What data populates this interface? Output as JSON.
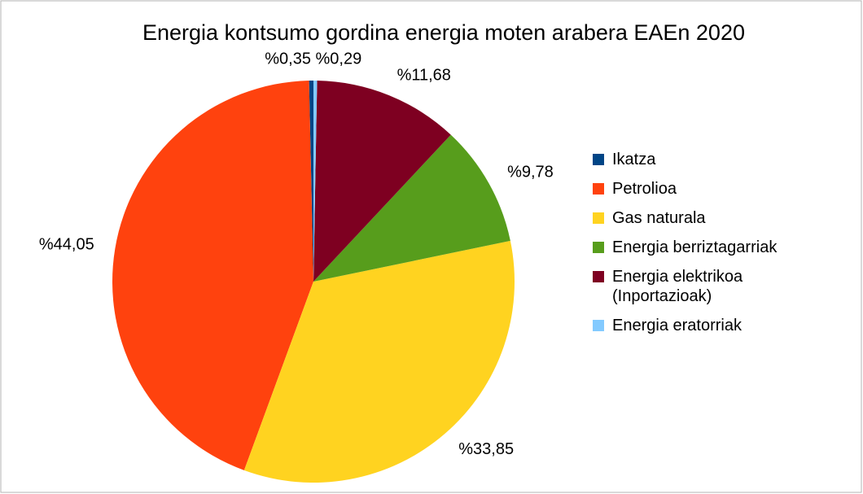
{
  "chart_data": {
    "type": "pie",
    "title": "Energia kontsumo gordina energia moten arabera EAEn 2020",
    "categories": [
      "Ikatza",
      "Petrolioa",
      "Gas naturala",
      "Energia berriztagarriak",
      "Energia elektrikoa (Inportazioak)",
      "Energia eratorriak"
    ],
    "values": [
      0.35,
      44.05,
      33.85,
      9.78,
      11.68,
      0.29
    ],
    "value_labels": [
      "%0,35",
      "%44,05",
      "%33,85",
      "%9,78",
      "%11,68",
      "%0,29"
    ],
    "colors": [
      "#004586",
      "#ff420e",
      "#ffd320",
      "#579d1c",
      "#7e0021",
      "#83caff"
    ],
    "legend": "right"
  }
}
